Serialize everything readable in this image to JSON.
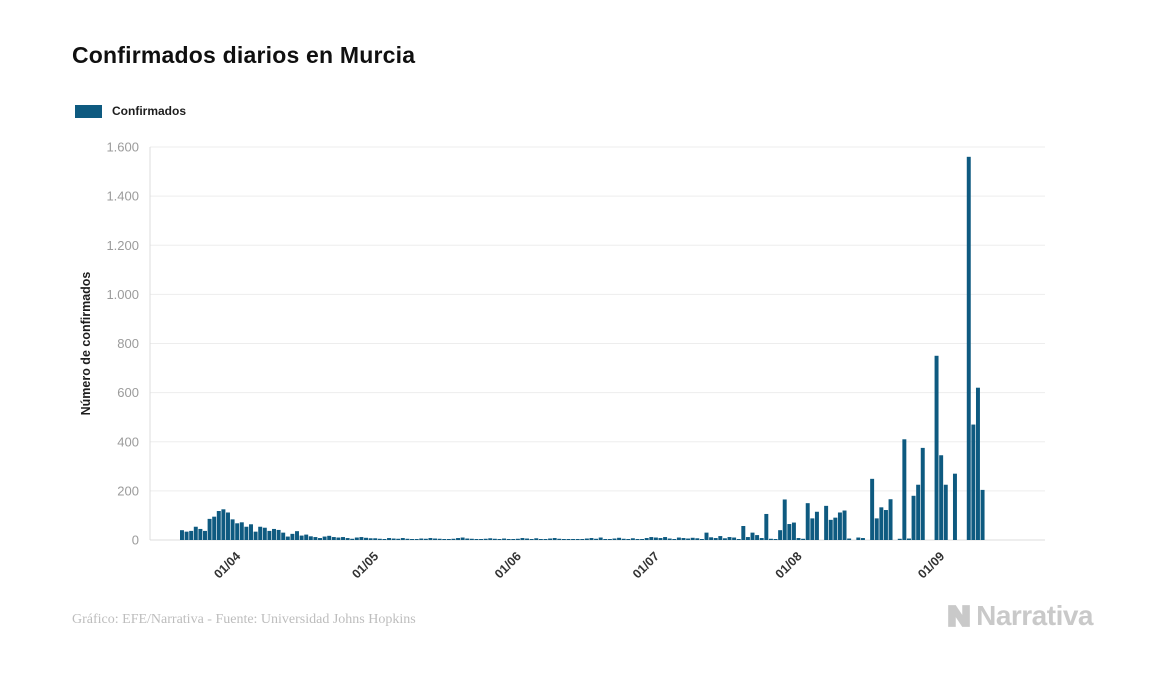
{
  "title": "Confirmados diarios en Murcia",
  "legend": {
    "label": "Confirmados",
    "color": "#0E5A80"
  },
  "footer": {
    "credit": "Gráfico: EFE/Narrativa - Fuente: Universidad Johns Hopkins",
    "brand": "Narrativa"
  },
  "colors": {
    "bar": "#0E5A80",
    "grid": "#ededed",
    "axis_line": "#dcdcdc",
    "y_tick_text": "#9b9b9b",
    "x_tick_text": "#333333",
    "y_title_text": "#1d1d1d",
    "brand_gray": "#c9c9c9"
  },
  "chart_data": {
    "type": "bar",
    "title": "Confirmados diarios en Murcia",
    "series_name": "Confirmados",
    "xlabel": "",
    "ylabel": "Número de confirmados",
    "ylim": [
      0,
      1600
    ],
    "ytick_step": 200,
    "ytick_labels": [
      "0",
      "200",
      "400",
      "600",
      "800",
      "1.000",
      "1.200",
      "1.400",
      "1.600"
    ],
    "grid": "horizontal-only",
    "legend_position": "top-left",
    "bar_color": "#0E5A80",
    "start_date": "20/03",
    "end_date": "12/09",
    "x_tick_labels": [
      "01/04",
      "01/05",
      "01/06",
      "01/07",
      "01/08",
      "01/09"
    ],
    "x_tick_slots": [
      12,
      42,
      73,
      103,
      134,
      165
    ],
    "total_slots": 188,
    "values": [
      40,
      34,
      37,
      54,
      45,
      37,
      86,
      95,
      118,
      125,
      112,
      84,
      68,
      72,
      54,
      64,
      34,
      54,
      50,
      37,
      45,
      41,
      30,
      14,
      25,
      36,
      18,
      22,
      15,
      12,
      8,
      14,
      17,
      12,
      10,
      12,
      8,
      5,
      10,
      12,
      9,
      7,
      7,
      5,
      3,
      8,
      6,
      5,
      8,
      5,
      4,
      3,
      6,
      5,
      8,
      6,
      5,
      3,
      2,
      5,
      8,
      10,
      6,
      5,
      4,
      2,
      5,
      7,
      5,
      4,
      6,
      3,
      2,
      5,
      8,
      6,
      4,
      7,
      3,
      2,
      6,
      8,
      5,
      4,
      3,
      2,
      1,
      4,
      6,
      8,
      5,
      10,
      4,
      2,
      6,
      9,
      5,
      4,
      7,
      3,
      2,
      8,
      12,
      10,
      8,
      12,
      6,
      3,
      10,
      8,
      6,
      9,
      7,
      4,
      30,
      11,
      8,
      16,
      7,
      12,
      10,
      4,
      57,
      12,
      30,
      20,
      8,
      106,
      5,
      3,
      40,
      165,
      65,
      71,
      8,
      5,
      150,
      88,
      115,
      0,
      139,
      82,
      91,
      112,
      120,
      6,
      0,
      10,
      8,
      0,
      249,
      88,
      133,
      122,
      166,
      0,
      5,
      410,
      6,
      180,
      225,
      375,
      0,
      0,
      750,
      345,
      225,
      0,
      270,
      0,
      0,
      1560,
      470,
      620,
      204,
      0,
      0
    ]
  }
}
